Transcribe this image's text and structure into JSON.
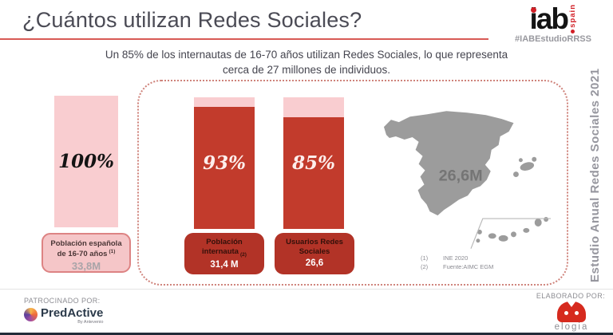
{
  "header": {
    "title": "¿Cuántos utilizan Redes Sociales?",
    "subtitle_line1": "Un 85% de los internautas de 16-70 años utilizan Redes Sociales, lo que representa",
    "subtitle_line2": "cerca de 27 millones de individuos.",
    "logo": {
      "wordmark": "iab",
      "region": "spain",
      "hashtag": "#IABEstudioRRSS"
    }
  },
  "chart_data": {
    "type": "bar",
    "title": "¿Cuántos utilizan Redes Sociales?",
    "categories": [
      "Población española de 16-70 años",
      "Población internauta",
      "Usuarios Redes Sociales"
    ],
    "values": [
      100,
      93,
      85
    ],
    "value_labels": [
      "100%",
      "93%",
      "85%"
    ],
    "absolute_labels": [
      "33,8M",
      "31,4 M",
      "26,6"
    ],
    "ylim": [
      0,
      100
    ],
    "annotations": [
      "26,6M"
    ]
  },
  "bars": [
    {
      "pct": "100%",
      "line1": "Población española",
      "line2": "de 16-70 años",
      "ref": "(1)",
      "value": "33,8M"
    },
    {
      "pct": "93%",
      "line1": "Población",
      "line2": "internauta",
      "ref": "(2)",
      "value": "31,4 M"
    },
    {
      "pct": "85%",
      "line1": "Usuarios Redes",
      "line2": "Sociales",
      "ref": "",
      "value": "26,6"
    }
  ],
  "map": {
    "value": "26,6M"
  },
  "footnotes": [
    {
      "ref": "(1)",
      "text": "INE 2020"
    },
    {
      "ref": "(2)",
      "text": "Fuente:AIMC EGM"
    }
  ],
  "side_caption": "Estudio Anual Redes Sociales 2021",
  "footer": {
    "sponsored_label": "PATROCINADO POR:",
    "sponsor_name": "PredActive",
    "sponsor_sub": "By Antevenio",
    "made_by_label": "ELABORADO POR:",
    "made_by_name": "elogia"
  },
  "colors": {
    "accent_red": "#c23b2c",
    "dark_red_box": "#b23327",
    "light_pink": "#f9cdd0",
    "pink_box_border": "#dd8383",
    "map_gray": "#9c9c9c",
    "title_gray": "#4b4b55",
    "logo_red": "#d21f26",
    "bottom_bar_dark": "#232b39"
  }
}
